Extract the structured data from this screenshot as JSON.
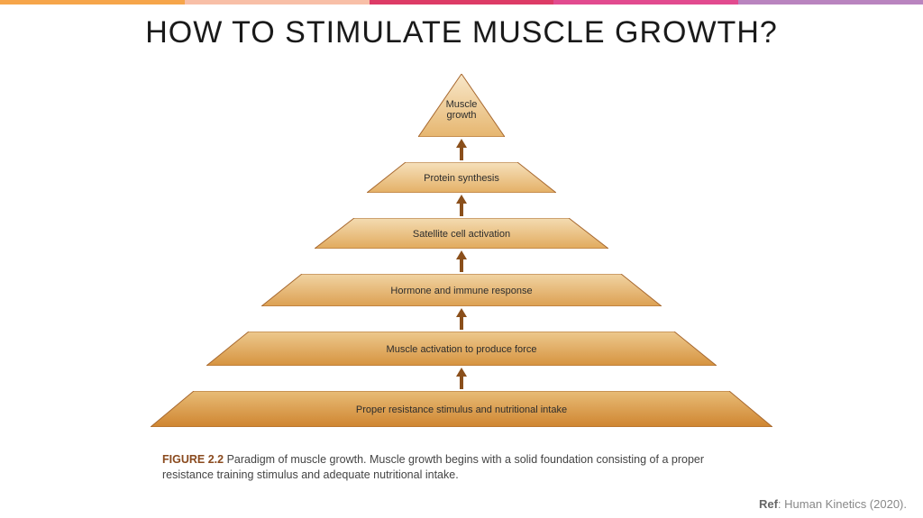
{
  "topBar": {
    "colors": [
      "#f6a54a",
      "#f8bfa7",
      "#dd3b66",
      "#e24b8f",
      "#b984bf"
    ]
  },
  "title": "HOW TO STIMULATE MUSCLE GROWTH?",
  "pyramid": {
    "type": "pyramid",
    "background_color": "#ffffff",
    "stroke_color": "#a7682f",
    "stroke_width": 1,
    "label_fontsize": 11,
    "label_color": "#2c2c2c",
    "arrow_color": "#8a4f1b",
    "levels": [
      {
        "label": "Muscle\ngrowth",
        "top_width": 0,
        "bottom_width": 96,
        "height": 70,
        "gradient": [
          "#f8e7c9",
          "#e6b66f"
        ]
      },
      {
        "label": "Protein synthesis",
        "top_width": 124,
        "bottom_width": 210,
        "height": 34,
        "gradient": [
          "#f6e1bc",
          "#e4b066"
        ]
      },
      {
        "label": "Satellite cell activation",
        "top_width": 238,
        "bottom_width": 326,
        "height": 34,
        "gradient": [
          "#f4dcb2",
          "#e1aa5d"
        ]
      },
      {
        "label": "Hormone and immune response",
        "top_width": 354,
        "bottom_width": 444,
        "height": 36,
        "gradient": [
          "#f1d4a3",
          "#dca052"
        ]
      },
      {
        "label": "Muscle activation to produce force",
        "top_width": 472,
        "bottom_width": 566,
        "height": 38,
        "gradient": [
          "#edc98e",
          "#d6933f"
        ]
      },
      {
        "label": "Proper resistance stimulus and nutritional intake",
        "top_width": 594,
        "bottom_width": 690,
        "height": 40,
        "gradient": [
          "#e8bc77",
          "#cf8530"
        ]
      }
    ],
    "gap": 28
  },
  "caption": {
    "figure_label": "FIGURE 2.2",
    "text": "Paradigm of muscle growth. Muscle growth begins with a solid foundation consisting of a proper resistance training stimulus and adequate nutritional intake."
  },
  "reference": {
    "label": "Ref",
    "text": "Human Kinetics (2020)."
  }
}
